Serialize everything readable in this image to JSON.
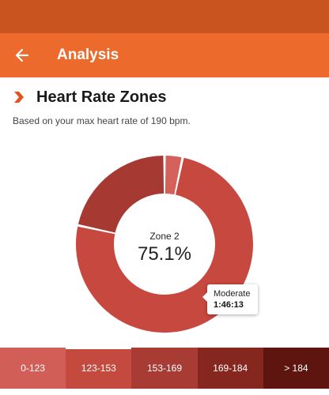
{
  "header": {
    "title": "Analysis",
    "back_icon": "arrow-left-icon",
    "bar_color": "#ec6a2c",
    "status_color": "#c9541f"
  },
  "section": {
    "icon": "chevron-right-icon",
    "title": "Heart Rate Zones",
    "subtitle": "Based on your max heart rate of 190 bpm."
  },
  "chart_data": {
    "type": "pie",
    "variant": "donut",
    "center_label": "Zone 2",
    "center_value": "75.1%",
    "slices": [
      {
        "label": "0-123",
        "value": 3.3,
        "color": "#d4625a"
      },
      {
        "label": "123-153",
        "value": 75.1,
        "color": "#c6483e"
      },
      {
        "label": "153-169",
        "value": 21.6,
        "color": "#a63a32"
      }
    ],
    "tooltip": {
      "name": "Moderate",
      "time": "1:46:13"
    }
  },
  "zones": [
    {
      "label": "0-123",
      "color": "#d15f58",
      "active": false
    },
    {
      "label": "123-153",
      "color": "#c44a3f",
      "active": true
    },
    {
      "label": "153-169",
      "color": "#a83c34",
      "active": false
    },
    {
      "label": "169-184",
      "color": "#86271f",
      "active": false
    },
    {
      "label": "> 184",
      "color": "#5e1510",
      "active": false
    }
  ]
}
